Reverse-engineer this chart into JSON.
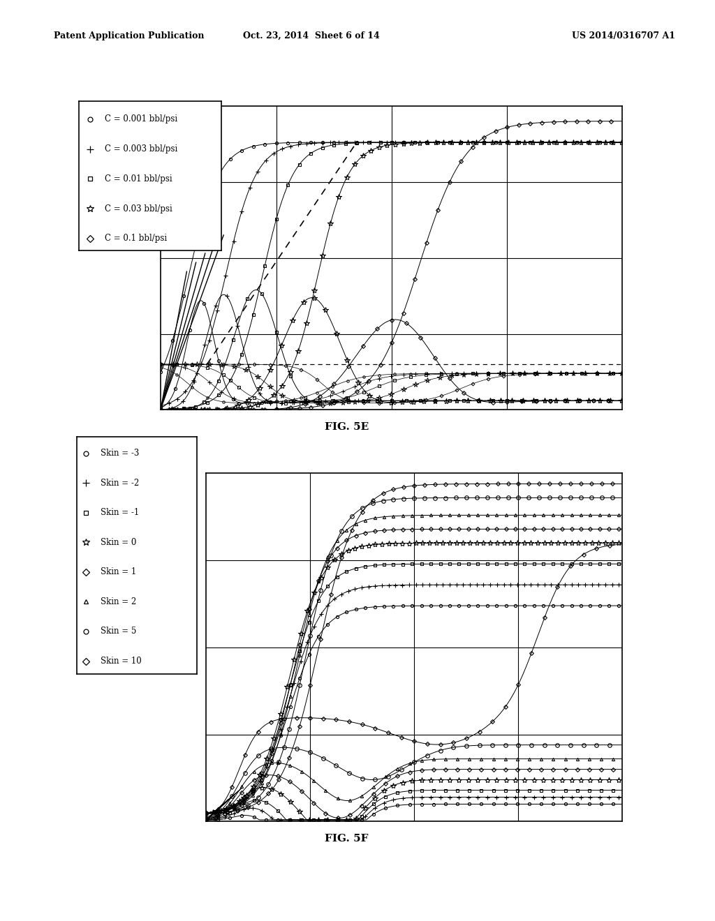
{
  "header_left": "Patent Application Publication",
  "header_center": "Oct. 23, 2014  Sheet 6 of 14",
  "header_right": "US 2014/0316707 A1",
  "fig5e_label": "FIG. 5E",
  "fig5f_label": "FIG. 5F",
  "fig5e_legend": [
    {
      "marker": "o",
      "label": "C = 0.001 bbl/psi"
    },
    {
      "marker": "+",
      "label": "C = 0.003 bbl/psi"
    },
    {
      "marker": "s",
      "label": "C = 0.01 bbl/psi"
    },
    {
      "marker": "*",
      "label": "C = 0.03 bbl/psi"
    },
    {
      "marker": "D",
      "label": "C = 0.1 bbl/psi"
    }
  ],
  "fig5f_legend": [
    {
      "marker": "o",
      "label": "Skin = -3"
    },
    {
      "marker": "+",
      "label": "Skin = -2"
    },
    {
      "marker": "s",
      "label": "Skin = -1"
    },
    {
      "marker": "*",
      "label": "Skin = 0"
    },
    {
      "marker": "D",
      "label": "Skin = 1"
    },
    {
      "marker": "^",
      "label": "Skin = 2"
    },
    {
      "marker": "o",
      "label": "Skin = 5"
    },
    {
      "marker": "D",
      "label": "Skin = 10"
    }
  ],
  "bg_color": "#ffffff"
}
